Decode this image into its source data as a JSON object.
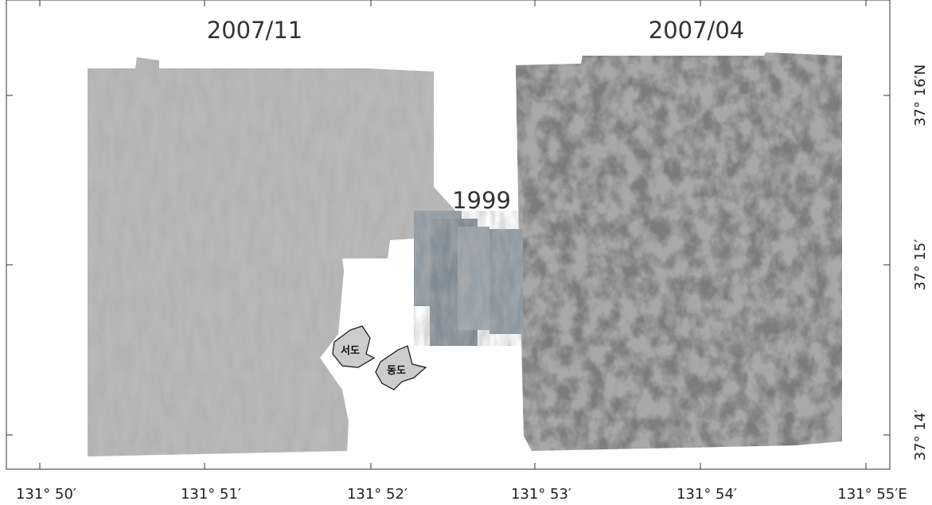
{
  "panels": [
    {
      "label": "2007/11"
    },
    {
      "label": "2007/04"
    },
    {
      "label": "1999"
    }
  ],
  "islands": [
    {
      "label": "서도"
    },
    {
      "label": "동도"
    }
  ],
  "longitude_labels": [
    "131° 50′",
    "131° 51′",
    "131° 52′",
    "131° 53′",
    "131° 54′",
    "131° 55′E"
  ],
  "latitude_labels": [
    "37° 16′N",
    "37° 15′",
    "37° 14′"
  ]
}
